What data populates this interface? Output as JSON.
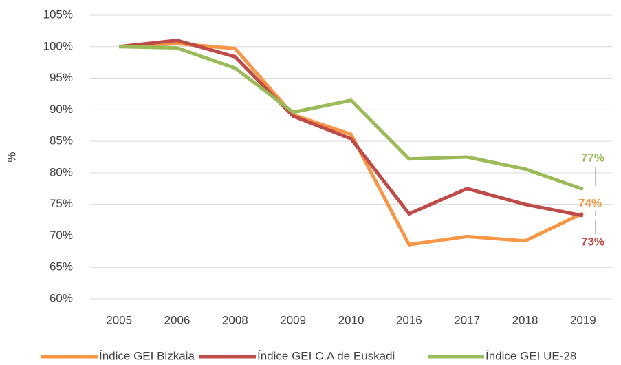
{
  "chart_data": {
    "type": "line",
    "y_label": "%",
    "categories": [
      "2005",
      "2006",
      "2008",
      "2009",
      "2010",
      "2016",
      "2017",
      "2018",
      "2019"
    ],
    "series": [
      {
        "name": "Índice GEI Bizkaia",
        "color": "#f79646",
        "values": [
          100,
          100.5,
          99.7,
          89.2,
          86.1,
          68.6,
          69.9,
          69.2,
          73.6
        ],
        "value_labels": [
          null,
          null,
          null,
          null,
          null,
          null,
          null,
          null,
          "74%"
        ]
      },
      {
        "name": "Índice GEI C.A de Euskadi",
        "color": "#be4b48",
        "values": [
          100,
          101,
          98.4,
          89,
          85.4,
          73.5,
          77.5,
          75,
          73.2
        ],
        "value_labels": [
          null,
          null,
          null,
          null,
          null,
          null,
          null,
          null,
          "73%"
        ]
      },
      {
        "name": "Índice GEI UE-28",
        "color": "#9bbb59",
        "values": [
          100,
          99.8,
          96.6,
          89.6,
          91.5,
          82.2,
          82.5,
          80.6,
          77.4
        ],
        "value_labels": [
          null,
          null,
          null,
          null,
          null,
          null,
          null,
          null,
          "77%"
        ]
      }
    ],
    "ylim": [
      60,
      105
    ],
    "yticks": [
      {
        "value": 60,
        "label": "60%"
      },
      {
        "value": 65,
        "label": "65%"
      },
      {
        "value": 70,
        "label": "70%"
      },
      {
        "value": 75,
        "label": "75%"
      },
      {
        "value": 80,
        "label": "80%"
      },
      {
        "value": 85,
        "label": "85%"
      },
      {
        "value": 90,
        "label": "90%"
      },
      {
        "value": 95,
        "label": "95%"
      },
      {
        "value": 100,
        "label": "100%"
      },
      {
        "value": 105,
        "label": "105%"
      }
    ],
    "grid": true,
    "legend": "bottom"
  }
}
